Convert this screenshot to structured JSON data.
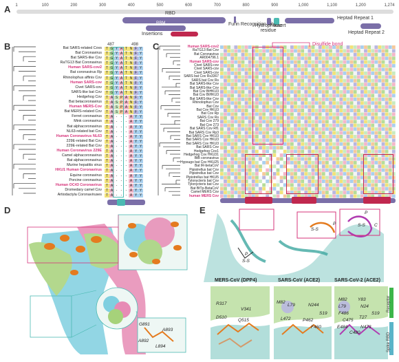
{
  "panels": {
    "a": "A",
    "b": "B",
    "c": "C",
    "d": "D",
    "e": "E"
  },
  "domain_map": {
    "ticks": [
      "1",
      "100",
      "200",
      "300",
      "400",
      "500",
      "600",
      "700",
      "800",
      "900",
      "1,000",
      "1,100",
      "1,200",
      "1,274"
    ],
    "rbd": "RBD",
    "rbm": "RBM",
    "insertions": "Insertions",
    "furin": "Furin Recognition Site",
    "hydrophobic": "Hydrophobic residue",
    "insert": "Insert",
    "hr1": "Heptad Repeat 1",
    "hr2": "Heptad Repeat 2"
  },
  "panel_b": {
    "pos_left": "487",
    "pos_right": "498",
    "species": [
      {
        "name": "Bat SARS-related Covs",
        "hl": false,
        "seq": "TGYATNFY"
      },
      {
        "name": "Bat Coronavirus",
        "hl": false,
        "seq": "TGYATNFY"
      },
      {
        "name": "Bat SARS-like Cov",
        "hl": false,
        "seq": "TGYATNFY"
      },
      {
        "name": "RaTG13 Bat Coronavirus",
        "hl": false,
        "seq": "TGYATNFY"
      },
      {
        "name": "Human SARS-cov2",
        "hl": true,
        "seq": "TGYATNFY"
      },
      {
        "name": "Bat coronavirus Rp",
        "hl": false,
        "seq": "TGYATNFY"
      },
      {
        "name": "Rhinolophus affinis Cov",
        "hl": false,
        "seq": "TGYATNFY"
      },
      {
        "name": "Human SARS-cov",
        "hl": true,
        "seq": "TGYATNFY"
      },
      {
        "name": "Civet SARS-cov",
        "hl": false,
        "seq": "TGYATNFY"
      },
      {
        "name": "SARS-like bat Cov",
        "hl": false,
        "seq": "TGYATNFY"
      },
      {
        "name": "Hedgehog Cov",
        "hl": false,
        "seq": "TASPANFY"
      },
      {
        "name": "Bat betacoronavirus",
        "hl": false,
        "seq": "TASPANFY"
      },
      {
        "name": "Human MERS-Cov",
        "hl": true,
        "seq": "TASPANFY"
      },
      {
        "name": "Bat MERS-related Cov",
        "hl": false,
        "seq": "TASPANFY"
      },
      {
        "name": "Ferret coronavirus",
        "hl": false,
        "seq": "TA---AYY"
      },
      {
        "name": "Mink coronavirus",
        "hl": false,
        "seq": "TA---AYY"
      },
      {
        "name": "Bat alphacoronavirus",
        "hl": false,
        "seq": "TA---AYY"
      },
      {
        "name": "NL63-related bat Cov",
        "hl": false,
        "seq": "TA---AYY"
      },
      {
        "name": "Human Coronavirus NL63",
        "hl": true,
        "seq": "TA---AYY"
      },
      {
        "name": "229E-related Bat Cov",
        "hl": false,
        "seq": "TA---AYY"
      },
      {
        "name": "229E-related Bat Cov",
        "hl": false,
        "seq": "TA---AYY"
      },
      {
        "name": "Human Coronavirus 229E",
        "hl": true,
        "seq": "TA---AYY"
      },
      {
        "name": "Camel alphacoronavirus",
        "hl": false,
        "seq": "TA---AYY"
      },
      {
        "name": "Bat alphacoronavirus",
        "hl": false,
        "seq": "TA---AYY"
      },
      {
        "name": "Murine hepatitis virus",
        "hl": false,
        "seq": "TA---AYY"
      },
      {
        "name": "HKU1 Human Coronavirus",
        "hl": true,
        "seq": "TA---AYY"
      },
      {
        "name": "Equine coronavirus",
        "hl": false,
        "seq": "TA---AYY"
      },
      {
        "name": "Porcine coronavirus",
        "hl": false,
        "seq": "TA---AYY"
      },
      {
        "name": "Human OC43 Coronavirus",
        "hl": true,
        "seq": "TA---AYY"
      },
      {
        "name": "Dromedary camel Cov",
        "hl": false,
        "seq": "TA---AYY"
      },
      {
        "name": "Artiodactyla Coronaviruses",
        "hl": false,
        "seq": "TA---AYY"
      }
    ]
  },
  "panel_c": {
    "disulfide": "Disulfide bond",
    "species": [
      {
        "name": "Human SARS-cov2",
        "hl": true
      },
      {
        "name": "RaTG13 Bat Cov",
        "hl": false
      },
      {
        "name": "Bat Coronavirus",
        "hl": false
      },
      {
        "name": "AR004796.1",
        "hl": false
      },
      {
        "name": "Human SARS-cov",
        "hl": true
      },
      {
        "name": "Civet SARS-cov",
        "hl": false
      },
      {
        "name": "Civet SARS-cov",
        "hl": false
      },
      {
        "name": "Civet SARS-cov",
        "hl": false
      },
      {
        "name": "SARS bat Cov Rs3367",
        "hl": false
      },
      {
        "name": "SARS bat Cov Rs",
        "hl": false
      },
      {
        "name": "Bat SARS-like Cov",
        "hl": false
      },
      {
        "name": "Bat SARS-like Cov",
        "hl": false
      },
      {
        "name": "Bat Cov BtHKU3",
        "hl": false
      },
      {
        "name": "Bat Cov BtHKU3",
        "hl": false
      },
      {
        "name": "Bat SARS-like Cov",
        "hl": false
      },
      {
        "name": "Rhinolophus Cov",
        "hl": false
      },
      {
        "name": "Bat Cov",
        "hl": false
      },
      {
        "name": "Bat Cov HKU3",
        "hl": false
      },
      {
        "name": "Bat Cov Rp",
        "hl": false
      },
      {
        "name": "SARS Cov Rs",
        "hl": false
      },
      {
        "name": "Bat Cov 279",
        "hl": false
      },
      {
        "name": "Bat Cov 273",
        "hl": false
      },
      {
        "name": "Bat SARS Cov Rf1",
        "hl": false
      },
      {
        "name": "Bat SARS Cov Rp3",
        "hl": false
      },
      {
        "name": "Bat SARS Cov HKU3",
        "hl": false
      },
      {
        "name": "Bat SARS Cov HKU3",
        "hl": false
      },
      {
        "name": "Bat SARS Cov HKU3",
        "hl": false
      },
      {
        "name": "Bat SARS Cov",
        "hl": false
      },
      {
        "name": "Hedgehog Cov1",
        "hl": false
      },
      {
        "name": "Hedgehog Cov HKU31",
        "hl": false
      },
      {
        "name": "BtB coronavirus",
        "hl": false
      },
      {
        "name": "Hypsugo bat Cov HKU25",
        "hl": false
      },
      {
        "name": "Bat IR-betaCoV",
        "hl": false
      },
      {
        "name": "Pipistrellus bat Cov",
        "hl": false
      },
      {
        "name": "Pipistrellus bat Cov",
        "hl": false
      },
      {
        "name": "Pipistrellus bat HKU5",
        "hl": false
      },
      {
        "name": "Tylonycteris bat Cov",
        "hl": false
      },
      {
        "name": "Tylonycteris bat Cov",
        "hl": false
      },
      {
        "name": "Bat BtTp-BetaCoV",
        "hl": false
      },
      {
        "name": "Camel MERS Cov",
        "hl": false
      },
      {
        "name": "human MERS Cov",
        "hl": true
      }
    ]
  },
  "panel_d": {},
  "panel_e": {
    "mers": "MERS-CoV (DPP4)",
    "sars": "SARS-CoV (ACE2)",
    "sars2": "SARS-CoV-2 (ACE2)",
    "receptor": "Receptor",
    "spike_rbd": "Spike RBD",
    "residues_d": [
      "G891",
      "A893",
      "A892",
      "L894"
    ],
    "residues_mers": [
      "R317",
      "V341",
      "D510",
      "Q515"
    ],
    "residues_sars": [
      "M82",
      "L79",
      "N244",
      "S19",
      "L472",
      "P462",
      "F460"
    ],
    "residues_sars2": [
      "M82",
      "Y83",
      "L79",
      "N24",
      "F486",
      "S19",
      "T27",
      "C475",
      "E484",
      "N473",
      "C480"
    ],
    "ss": "S-S",
    "p": "P",
    "c": "C"
  },
  "colors": {
    "magenta": "#d6337a",
    "purple": "#7b6fa8",
    "teal": "#4bbab2",
    "crimson": "#c0284f",
    "green": "#3db54a",
    "cyan": "#5ab4c8"
  }
}
